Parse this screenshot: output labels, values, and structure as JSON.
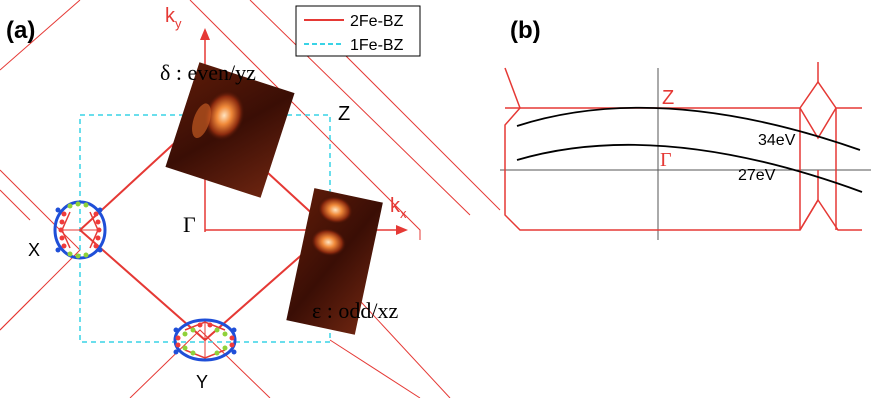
{
  "panel_a": {
    "label": "(a)",
    "legend": [
      {
        "label": "2Fe-BZ",
        "color": "#e53935",
        "style": "solid"
      },
      {
        "label": "1Fe-BZ",
        "color": "#39d3e6",
        "style": "dashed"
      }
    ],
    "ky_label": "k",
    "ky_sub": "y",
    "kx_label": "k",
    "kx_sub": "x",
    "delta_label": "δ : even/yz",
    "epsilon_label": "ε : odd/xz",
    "Z_label": "Z",
    "Gamma_label": "Γ",
    "X_label": "X",
    "Y_label": "Y",
    "colors": {
      "bz2": "#e53935",
      "bz1": "#39d3e6",
      "pocket": "#1f4fd8",
      "dot_red": "#ef3b3b",
      "dot_green": "#8fd13a",
      "map_dark": "#3a0e05",
      "map_bright": "#ffd7a8"
    }
  },
  "panel_b": {
    "label": "(b)",
    "Z_label": "Z",
    "Gamma_label": "Γ",
    "cut_34": "34eV",
    "cut_27": "27eV"
  }
}
